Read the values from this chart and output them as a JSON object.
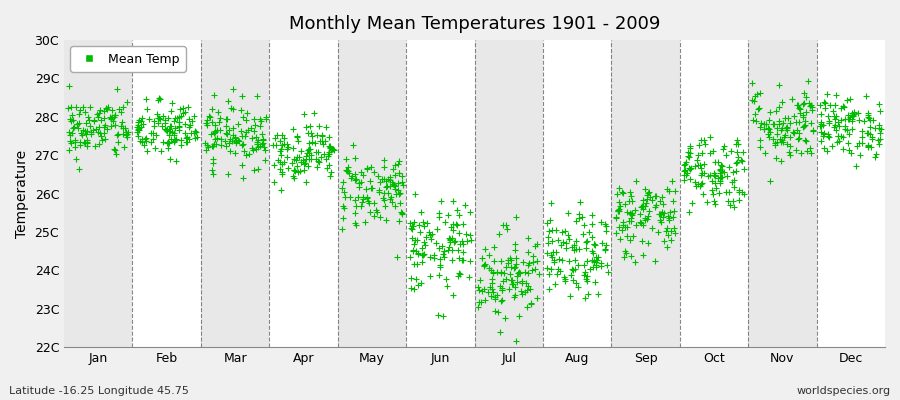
{
  "title": "Monthly Mean Temperatures 1901 - 2009",
  "ylabel": "Temperature",
  "subtitle_left": "Latitude -16.25 Longitude 45.75",
  "subtitle_right": "worldspecies.org",
  "legend_label": "Mean Temp",
  "marker_color": "#00bb00",
  "background_color": "#f0f0f0",
  "plot_bg_white": "#ffffff",
  "plot_bg_gray": "#e8e8e8",
  "ylim_min": 22,
  "ylim_max": 30,
  "yticks": [
    22,
    23,
    24,
    25,
    26,
    27,
    28,
    29,
    30
  ],
  "ytick_labels": [
    "22C",
    "23C",
    "24C",
    "25C",
    "26C",
    "27C",
    "28C",
    "29C",
    "30C"
  ],
  "months": [
    "Jan",
    "Feb",
    "Mar",
    "Apr",
    "May",
    "Jun",
    "Jul",
    "Aug",
    "Sep",
    "Oct",
    "Nov",
    "Dec"
  ],
  "monthly_means": [
    27.7,
    27.65,
    27.55,
    27.1,
    26.1,
    24.55,
    23.9,
    24.35,
    25.4,
    26.6,
    27.8,
    27.75
  ],
  "monthly_stds": [
    0.4,
    0.38,
    0.42,
    0.38,
    0.5,
    0.6,
    0.6,
    0.55,
    0.52,
    0.5,
    0.52,
    0.4
  ],
  "n_years": 109,
  "seed": 42,
  "dashed_color": "#555555",
  "figsize": [
    9.0,
    4.0
  ],
  "dpi": 100
}
